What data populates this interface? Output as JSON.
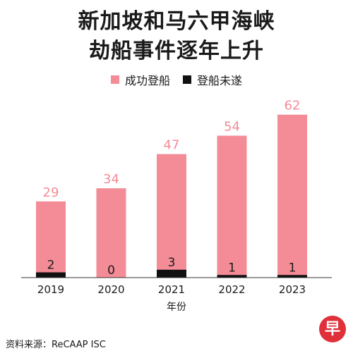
{
  "title_line1": "新加坡和马六甲海峡",
  "title_line2": "劫船事件逐年上升",
  "source": "资料来源：ReCAAP ISC",
  "logo_text": "早",
  "colors": {
    "success": "#f48c97",
    "failed": "#111111",
    "axis": "#333333",
    "logo": "#e0303a"
  },
  "chart_data": {
    "type": "bar",
    "categories": [
      "2019",
      "2020",
      "2021",
      "2022",
      "2023"
    ],
    "series": [
      {
        "name": "成功登船",
        "values": [
          29,
          34,
          47,
          54,
          62
        ]
      },
      {
        "name": "登船未遂",
        "values": [
          2,
          0,
          3,
          1,
          1
        ]
      }
    ],
    "xlabel": "年份",
    "ylabel": "",
    "legend_position": "top-center",
    "grid": false
  }
}
